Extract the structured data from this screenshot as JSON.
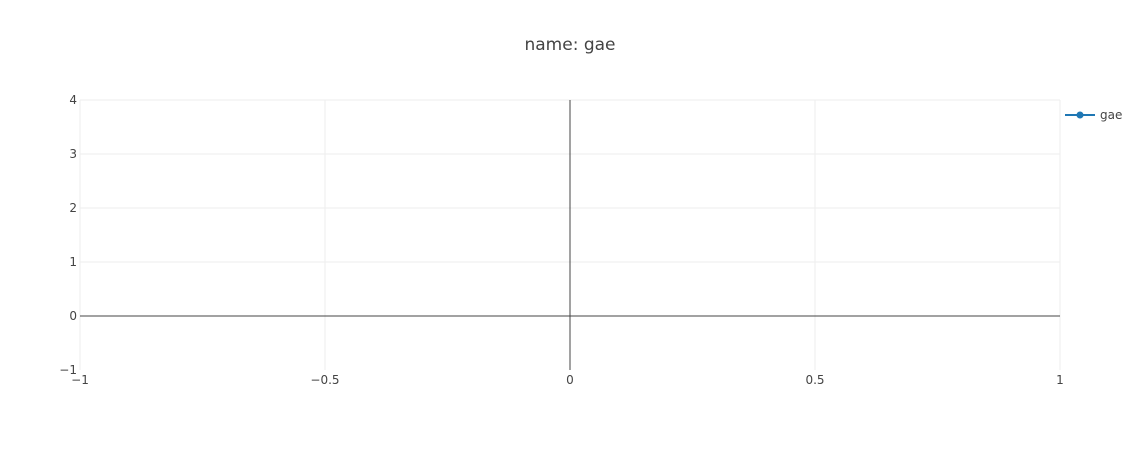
{
  "chart_data": {
    "type": "line",
    "title": "name: gae",
    "xlabel": "",
    "ylabel": "",
    "xlim": [
      -1,
      1
    ],
    "ylim": [
      -1,
      4
    ],
    "x_ticks": [
      -1,
      -0.5,
      0,
      0.5,
      1
    ],
    "x_tick_labels": [
      "−1",
      "−0.5",
      "0",
      "0.5",
      "1"
    ],
    "y_ticks": [
      -1,
      0,
      1,
      2,
      3,
      4
    ],
    "y_tick_labels": [
      "−1",
      "0",
      "1",
      "2",
      "3",
      "4"
    ],
    "grid": true,
    "legend_position": "top-right",
    "series": [
      {
        "name": "gae",
        "color": "#1f77b4",
        "mode": "lines+markers",
        "x": [],
        "y": []
      }
    ]
  }
}
